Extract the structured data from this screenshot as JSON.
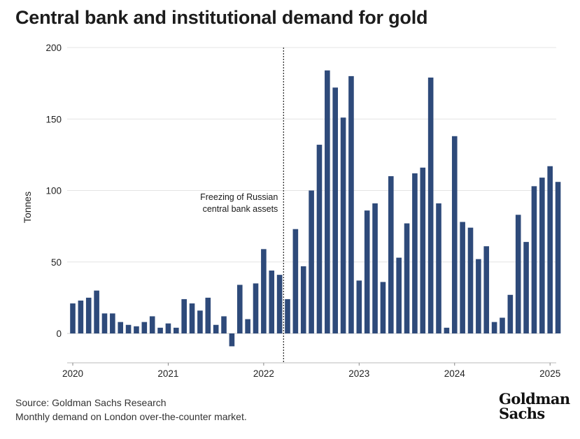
{
  "title": "Central bank and institutional demand for gold",
  "source": {
    "line1": "Source: Goldman Sachs Research",
    "line2": "Monthly demand on London over-the-counter market."
  },
  "logo": {
    "line1": "Goldman",
    "line2": "Sachs"
  },
  "chart_data": {
    "type": "bar",
    "title": "Central bank and institutional demand for gold",
    "xlabel": "",
    "ylabel": "Tonnes",
    "ylim": [
      -20,
      200
    ],
    "yticks": [
      0,
      50,
      100,
      150,
      200
    ],
    "xticks": [
      {
        "label": "2020",
        "index": 0
      },
      {
        "label": "2021",
        "index": 12
      },
      {
        "label": "2022",
        "index": 24
      },
      {
        "label": "2023",
        "index": 36
      },
      {
        "label": "2024",
        "index": 48
      },
      {
        "label": "2025",
        "index": 60
      }
    ],
    "grid": true,
    "bar_color": "#2e4a7a",
    "annotation": {
      "lines": [
        "Freezing of Russian",
        "central bank assets"
      ],
      "x_index": 26.5
    },
    "categories": [
      "Jan 2020",
      "Feb 2020",
      "Mar 2020",
      "Apr 2020",
      "May 2020",
      "Jun 2020",
      "Jul 2020",
      "Aug 2020",
      "Sep 2020",
      "Oct 2020",
      "Nov 2020",
      "Dec 2020",
      "Jan 2021",
      "Feb 2021",
      "Mar 2021",
      "Apr 2021",
      "May 2021",
      "Jun 2021",
      "Jul 2021",
      "Aug 2021",
      "Sep 2021",
      "Oct 2021",
      "Nov 2021",
      "Dec 2021",
      "Jan 2022",
      "Feb 2022",
      "Mar 2022",
      "Apr 2022",
      "May 2022",
      "Jun 2022",
      "Jul 2022",
      "Aug 2022",
      "Sep 2022",
      "Oct 2022",
      "Nov 2022",
      "Dec 2022",
      "Jan 2023",
      "Feb 2023",
      "Mar 2023",
      "Apr 2023",
      "May 2023",
      "Jun 2023",
      "Jul 2023",
      "Aug 2023",
      "Sep 2023",
      "Oct 2023",
      "Nov 2023",
      "Dec 2023",
      "Jan 2024",
      "Feb 2024",
      "Mar 2024",
      "Apr 2024",
      "May 2024",
      "Jun 2024",
      "Jul 2024",
      "Aug 2024",
      "Sep 2024",
      "Oct 2024",
      "Nov 2024",
      "Dec 2024",
      "Jan 2025",
      "Feb 2025"
    ],
    "values": [
      21,
      23,
      25,
      30,
      14,
      14,
      8,
      6,
      5,
      8,
      12,
      4,
      7,
      4,
      24,
      21,
      16,
      25,
      6,
      12,
      -9,
      34,
      10,
      35,
      59,
      44,
      41,
      24,
      73,
      47,
      100,
      132,
      184,
      172,
      151,
      180,
      37,
      86,
      91,
      36,
      110,
      53,
      77,
      112,
      116,
      179,
      91,
      4,
      138,
      78,
      74,
      52,
      61,
      8,
      11,
      27,
      83,
      64,
      103,
      109,
      117,
      106
    ]
  }
}
